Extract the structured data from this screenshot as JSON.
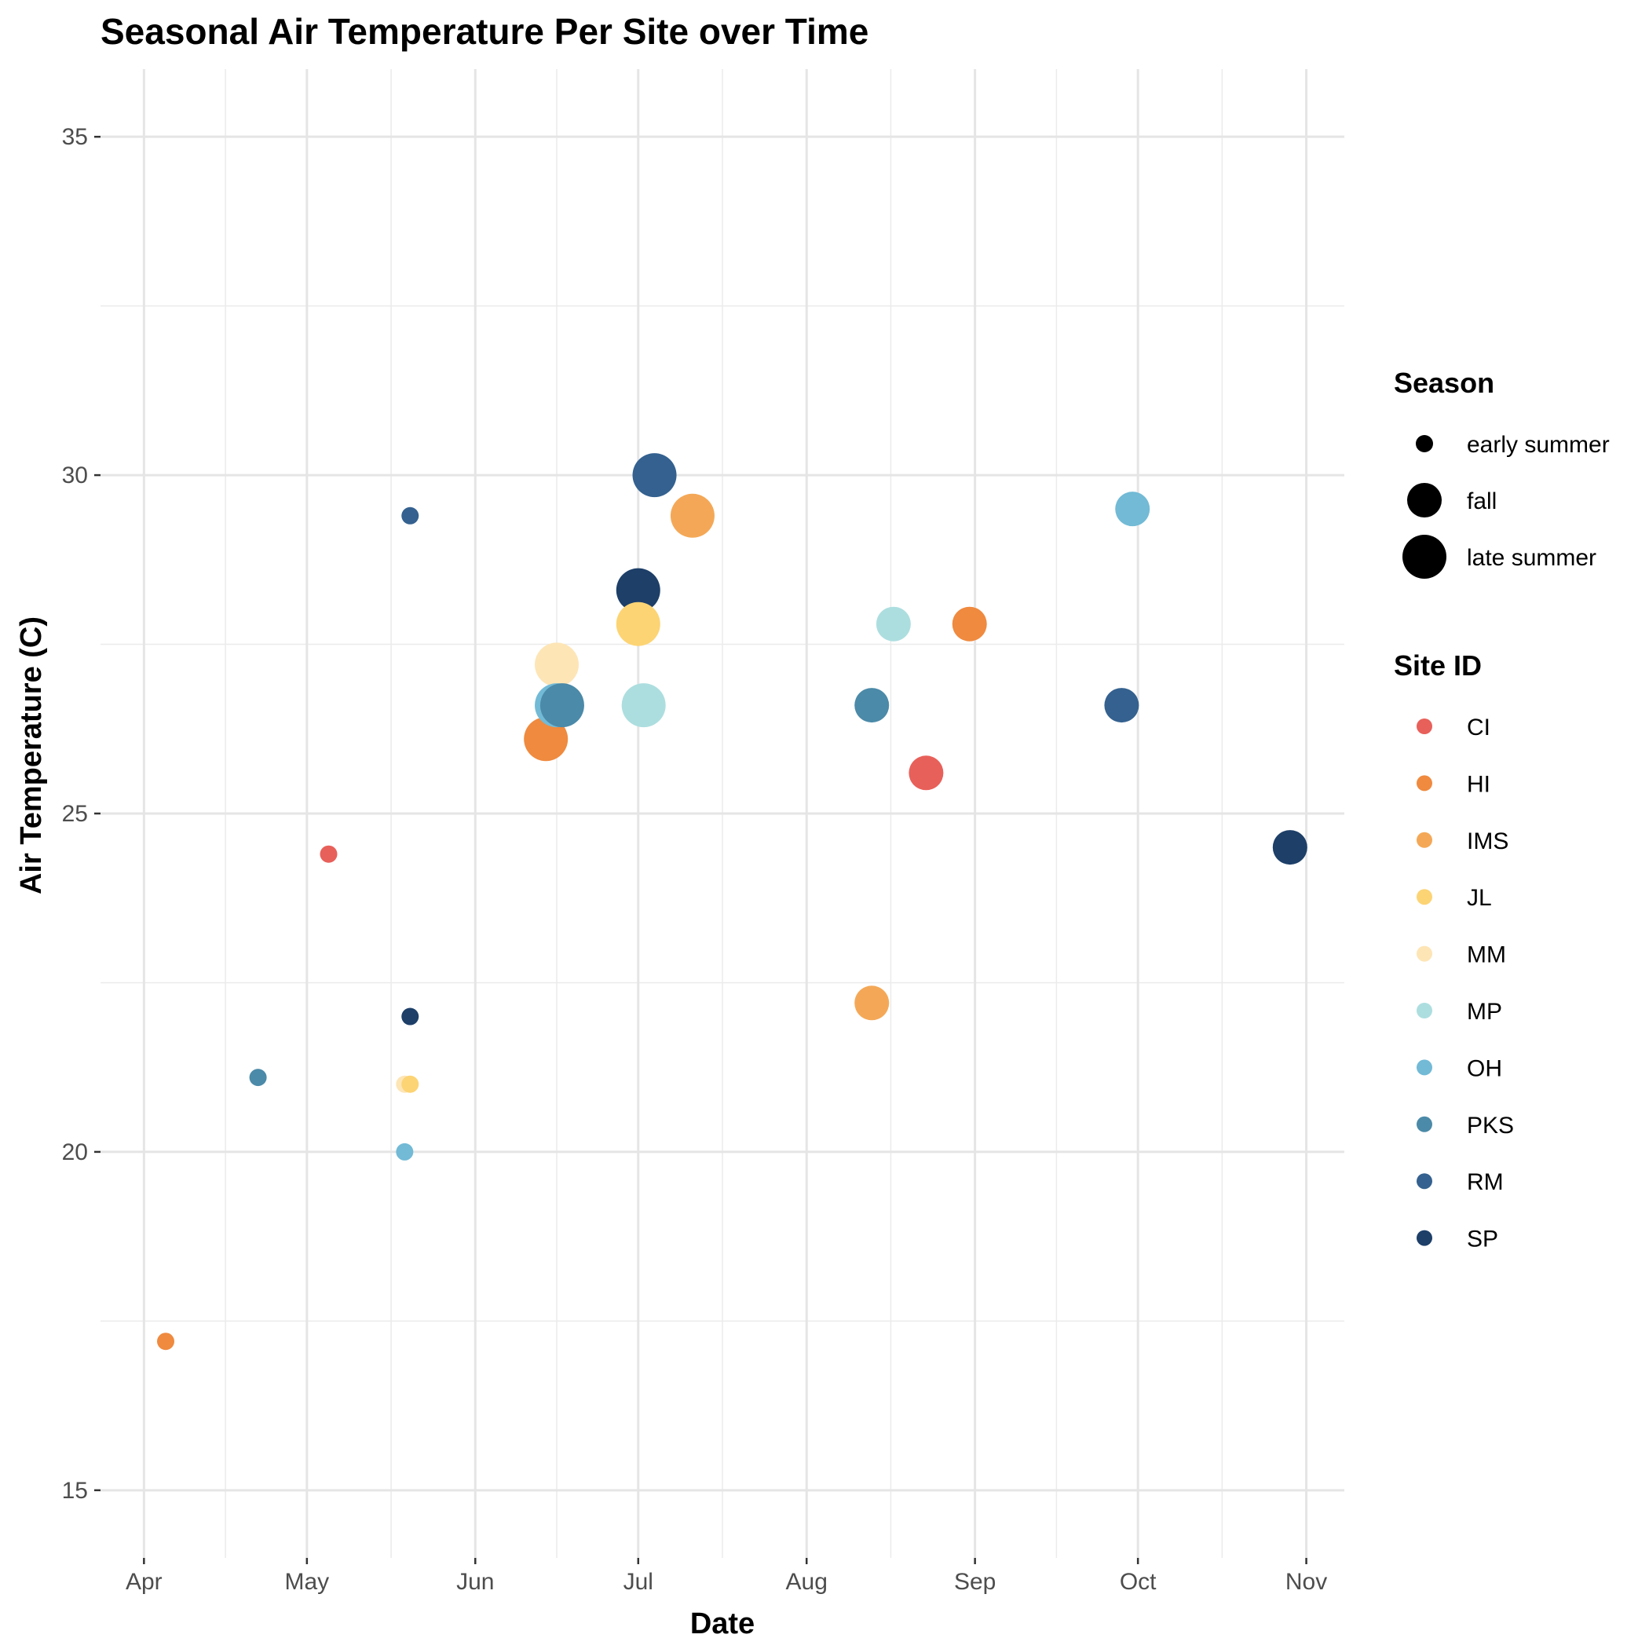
{
  "chart_data": {
    "type": "scatter",
    "title": "Seasonal Air Temperature Per Site over Time",
    "xlabel": "Date",
    "ylabel": "Air Temperature (C)",
    "x_scale": "date",
    "xlim": [
      "2023-03-24",
      "2023-11-08"
    ],
    "ylim": [
      14,
      36
    ],
    "x_ticks": [
      {
        "label": "Apr",
        "date": "2023-04-01"
      },
      {
        "label": "May",
        "date": "2023-05-01"
      },
      {
        "label": "Jun",
        "date": "2023-06-01"
      },
      {
        "label": "Jul",
        "date": "2023-07-01"
      },
      {
        "label": "Aug",
        "date": "2023-08-01"
      },
      {
        "label": "Sep",
        "date": "2023-09-01"
      },
      {
        "label": "Oct",
        "date": "2023-10-01"
      },
      {
        "label": "Nov",
        "date": "2023-11-01"
      }
    ],
    "y_ticks": [
      15,
      20,
      25,
      30,
      35
    ],
    "grid": true,
    "legend_position": "right",
    "size_legend": {
      "title": "Season",
      "items": [
        {
          "label": "early summer",
          "size": "small"
        },
        {
          "label": "fall",
          "size": "medium"
        },
        {
          "label": "late summer",
          "size": "large"
        }
      ]
    },
    "color_legend": {
      "title": "Site ID",
      "items": [
        {
          "label": "CI",
          "color": "#e8605a"
        },
        {
          "label": "HI",
          "color": "#ef8a3f"
        },
        {
          "label": "IMS",
          "color": "#f4a857"
        },
        {
          "label": "JL",
          "color": "#fcd474"
        },
        {
          "label": "MM",
          "color": "#fde5b6"
        },
        {
          "label": "MP",
          "color": "#addedf"
        },
        {
          "label": "OH",
          "color": "#72bad6"
        },
        {
          "label": "PKS",
          "color": "#4b8aa8"
        },
        {
          "label": "RM",
          "color": "#34618f"
        },
        {
          "label": "SP",
          "color": "#1d3f68"
        }
      ]
    },
    "points": [
      {
        "site": "HI",
        "season": "early summer",
        "date": "2023-04-05",
        "temp": 17.2
      },
      {
        "site": "PKS",
        "season": "early summer",
        "date": "2023-04-22",
        "temp": 21.1
      },
      {
        "site": "CI",
        "season": "early summer",
        "date": "2023-05-05",
        "temp": 24.4
      },
      {
        "site": "MM",
        "season": "early summer",
        "date": "2023-05-19",
        "temp": 21.0
      },
      {
        "site": "JL",
        "season": "early summer",
        "date": "2023-05-20",
        "temp": 21.0
      },
      {
        "site": "OH",
        "season": "early summer",
        "date": "2023-05-19",
        "temp": 20.0
      },
      {
        "site": "RM",
        "season": "early summer",
        "date": "2023-05-20",
        "temp": 29.4
      },
      {
        "site": "SP",
        "season": "early summer",
        "date": "2023-05-20",
        "temp": 22.0
      },
      {
        "site": "HI",
        "season": "late summer",
        "date": "2023-06-14",
        "temp": 26.1
      },
      {
        "site": "MM",
        "season": "late summer",
        "date": "2023-06-16",
        "temp": 27.2
      },
      {
        "site": "OH",
        "season": "late summer",
        "date": "2023-06-16",
        "temp": 26.6
      },
      {
        "site": "PKS",
        "season": "late summer",
        "date": "2023-06-17",
        "temp": 26.6
      },
      {
        "site": "SP",
        "season": "late summer",
        "date": "2023-07-01",
        "temp": 28.3
      },
      {
        "site": "JL",
        "season": "late summer",
        "date": "2023-07-01",
        "temp": 27.8
      },
      {
        "site": "MP",
        "season": "late summer",
        "date": "2023-07-02",
        "temp": 26.6
      },
      {
        "site": "RM",
        "season": "late summer",
        "date": "2023-07-04",
        "temp": 30.0
      },
      {
        "site": "IMS",
        "season": "late summer",
        "date": "2023-07-11",
        "temp": 29.4
      },
      {
        "site": "PKS",
        "season": "fall",
        "date": "2023-08-13",
        "temp": 26.6
      },
      {
        "site": "IMS",
        "season": "fall",
        "date": "2023-08-13",
        "temp": 22.2
      },
      {
        "site": "MP",
        "season": "fall",
        "date": "2023-08-17",
        "temp": 27.8
      },
      {
        "site": "CI",
        "season": "fall",
        "date": "2023-08-23",
        "temp": 25.6
      },
      {
        "site": "HI",
        "season": "fall",
        "date": "2023-08-31",
        "temp": 27.8
      },
      {
        "site": "RM",
        "season": "fall",
        "date": "2023-09-28",
        "temp": 26.6
      },
      {
        "site": "OH",
        "season": "fall",
        "date": "2023-09-30",
        "temp": 29.5
      },
      {
        "site": "SP",
        "season": "fall",
        "date": "2023-10-29",
        "temp": 24.5
      }
    ]
  }
}
